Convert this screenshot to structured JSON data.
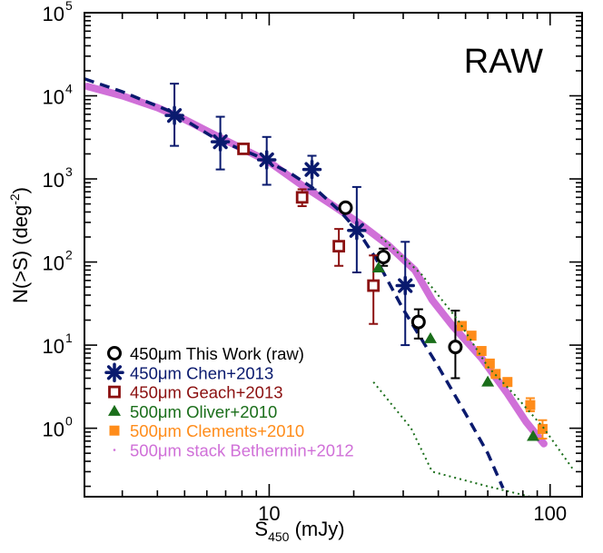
{
  "chart_data": {
    "type": "scatter",
    "title": "",
    "annotation": "RAW",
    "xlabel": {
      "main": "S",
      "sub": "450",
      "unit": " (mJy)"
    },
    "ylabel": {
      "main": "N(>S) (deg",
      "sup": "-2",
      "close": ")"
    },
    "x_scale": "log",
    "y_scale": "log",
    "xlim": [
      2.2,
      130
    ],
    "ylim": [
      0.15,
      100000
    ],
    "x_tick_labels": [
      {
        "value": 10,
        "label": "10"
      },
      {
        "value": 100,
        "label": "100"
      }
    ],
    "y_tick_labels": [
      {
        "value": 1,
        "base": "10",
        "exp": "0"
      },
      {
        "value": 10,
        "base": "10",
        "exp": "1"
      },
      {
        "value": 100,
        "base": "10",
        "exp": "2"
      },
      {
        "value": 1000,
        "base": "10",
        "exp": "3"
      },
      {
        "value": 10000,
        "base": "10",
        "exp": "4"
      },
      {
        "value": 100000,
        "base": "10",
        "exp": "5"
      }
    ],
    "grid": false,
    "legend_position": "bottom-left",
    "colors": {
      "this_work": "#000000",
      "chen": "#0a1a6e",
      "geach": "#8b1010",
      "oliver": "#1a6e1a",
      "clements": "#ff8c1a",
      "bethermin": "#d070d8"
    },
    "series": [
      {
        "key": "this_work",
        "name": "450μm This Work (raw)",
        "marker": "open-circle",
        "points": [
          {
            "x": 18.7,
            "y": 450,
            "lo": 450,
            "hi": 450
          },
          {
            "x": 25.5,
            "y": 115,
            "lo": 90,
            "hi": 145
          },
          {
            "x": 34.0,
            "y": 19,
            "lo": 12,
            "hi": 27
          },
          {
            "x": 46.0,
            "y": 9.5,
            "lo": 4,
            "hi": 26
          }
        ]
      },
      {
        "key": "chen",
        "name": "450μm Chen+2013",
        "marker": "asterisk",
        "points": [
          {
            "x": 4.6,
            "y": 5800,
            "lo": 2500,
            "hi": 14000
          },
          {
            "x": 6.7,
            "y": 2800,
            "lo": 1300,
            "hi": 5600
          },
          {
            "x": 9.8,
            "y": 1700,
            "lo": 850,
            "hi": 3200
          },
          {
            "x": 14.2,
            "y": 1300,
            "lo": 750,
            "hi": 1900
          },
          {
            "x": 20.5,
            "y": 240,
            "lo": 75,
            "hi": 800
          },
          {
            "x": 30.5,
            "y": 52,
            "lo": 10,
            "hi": 175
          }
        ]
      },
      {
        "key": "geach",
        "name": "450μm Geach+2013",
        "marker": "open-square",
        "points": [
          {
            "x": 8.1,
            "y": 2300,
            "lo": 2100,
            "hi": 2500
          },
          {
            "x": 13.1,
            "y": 600,
            "lo": 470,
            "hi": 750
          },
          {
            "x": 17.7,
            "y": 155,
            "lo": 90,
            "hi": 250
          },
          {
            "x": 23.5,
            "y": 52,
            "lo": 18,
            "hi": 120
          }
        ]
      },
      {
        "key": "oliver",
        "name": "500μm Oliver+2010",
        "marker": "filled-triangle",
        "points": [
          {
            "x": 24.5,
            "y": 85
          },
          {
            "x": 37.5,
            "y": 12
          },
          {
            "x": 60.0,
            "y": 3.6
          },
          {
            "x": 87.0,
            "y": 0.8
          }
        ]
      },
      {
        "key": "clements",
        "name": "500μm Clements+2010",
        "marker": "filled-square",
        "points": [
          {
            "x": 48.5,
            "y": 17
          },
          {
            "x": 52.5,
            "y": 13
          },
          {
            "x": 57.0,
            "y": 8.5
          },
          {
            "x": 61.0,
            "y": 6.0
          },
          {
            "x": 64.0,
            "y": 4.5
          },
          {
            "x": 70.5,
            "y": 3.6
          },
          {
            "x": 85.0,
            "y": 1.9,
            "lo": 1.6,
            "hi": 2.3
          },
          {
            "x": 94.0,
            "y": 0.98,
            "lo": 0.75,
            "hi": 1.25
          }
        ]
      },
      {
        "key": "bethermin",
        "name": "500μm stack Bethermin+2012",
        "marker": "dotted-line",
        "upper": [
          {
            "x": 25.0,
            "y": 200
          },
          {
            "x": 35.0,
            "y": 70
          },
          {
            "x": 47.0,
            "y": 20
          },
          {
            "x": 60.0,
            "y": 5.5
          },
          {
            "x": 75.0,
            "y": 2.5
          },
          {
            "x": 95.0,
            "y": 1.0
          },
          {
            "x": 120.0,
            "y": 0.33
          }
        ],
        "lower": [
          {
            "x": 23.5,
            "y": 3.6
          },
          {
            "x": 32.0,
            "y": 1.0
          },
          {
            "x": 38.0,
            "y": 0.3
          },
          {
            "x": 60.0,
            "y": 0.2
          },
          {
            "x": 85.0,
            "y": 0.15
          }
        ]
      }
    ],
    "models": [
      {
        "key": "model_solid",
        "style": "thick-solid",
        "points": [
          {
            "x": 2.25,
            "y": 13000
          },
          {
            "x": 3.0,
            "y": 10000
          },
          {
            "x": 4.0,
            "y": 7200
          },
          {
            "x": 5.0,
            "y": 5200
          },
          {
            "x": 6.5,
            "y": 3300
          },
          {
            "x": 8.5,
            "y": 2100
          },
          {
            "x": 10.0,
            "y": 1600
          },
          {
            "x": 13.0,
            "y": 850
          },
          {
            "x": 17.0,
            "y": 470
          },
          {
            "x": 21.0,
            "y": 290
          },
          {
            "x": 26.5,
            "y": 160
          },
          {
            "x": 33.0,
            "y": 80
          },
          {
            "x": 38.0,
            "y": 35
          },
          {
            "x": 45.0,
            "y": 17
          },
          {
            "x": 57.0,
            "y": 7.0
          },
          {
            "x": 70.0,
            "y": 2.7
          },
          {
            "x": 82.0,
            "y": 1.2
          },
          {
            "x": 95.0,
            "y": 0.65
          }
        ]
      },
      {
        "key": "model_dashed",
        "style": "dashed",
        "points": [
          {
            "x": 2.2,
            "y": 16000
          },
          {
            "x": 3.0,
            "y": 11200
          },
          {
            "x": 4.5,
            "y": 6400
          },
          {
            "x": 6.5,
            "y": 3000
          },
          {
            "x": 9.0,
            "y": 1900
          },
          {
            "x": 12.0,
            "y": 1150
          },
          {
            "x": 15.0,
            "y": 700
          },
          {
            "x": 18.0,
            "y": 400
          },
          {
            "x": 21.0,
            "y": 220
          },
          {
            "x": 24.0,
            "y": 110
          },
          {
            "x": 30.0,
            "y": 27
          },
          {
            "x": 40.0,
            "y": 5.5
          },
          {
            "x": 50.0,
            "y": 1.5
          },
          {
            "x": 60.0,
            "y": 0.5
          },
          {
            "x": 68.0,
            "y": 0.19
          }
        ]
      }
    ]
  }
}
